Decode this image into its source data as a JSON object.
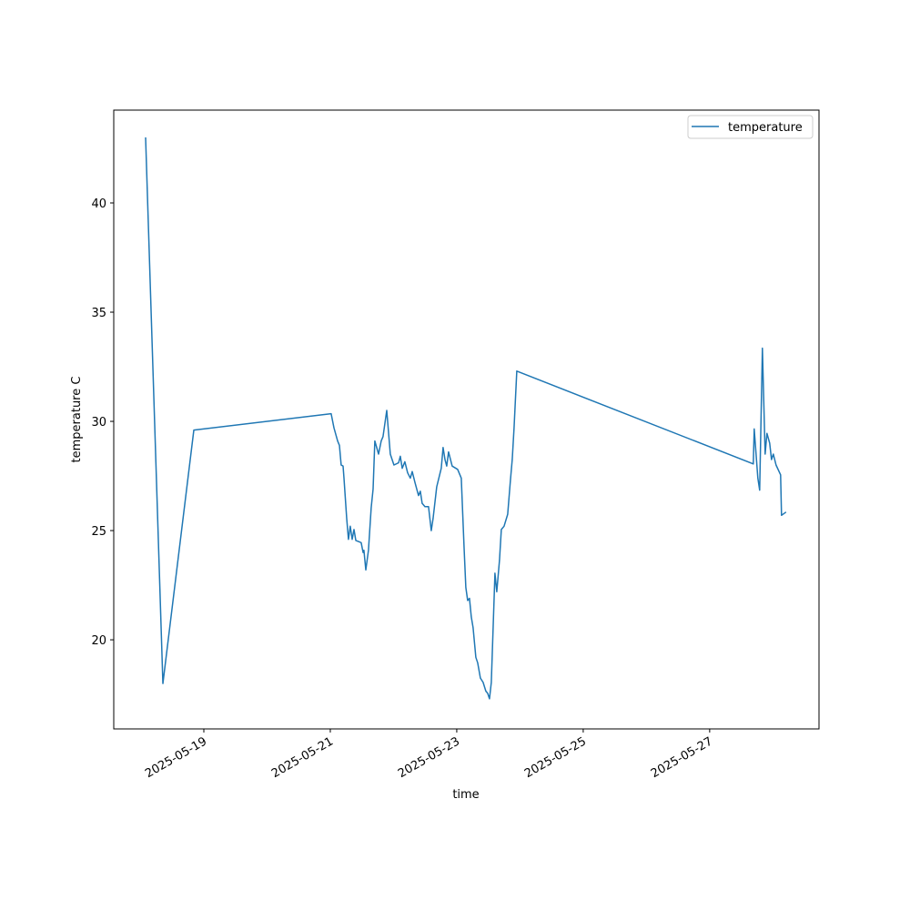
{
  "chart_data": {
    "type": "line",
    "xlabel": "time",
    "ylabel": "temperature C",
    "x": [
      "2025-05-18 01:54",
      "2025-05-18 08:28",
      "2025-05-18 20:12",
      "2025-05-21 00:20",
      "2025-05-21 01:23",
      "2025-05-21 02:46",
      "2025-05-21 03:27",
      "2025-05-21 04:08",
      "2025-05-21 04:50",
      "2025-05-21 05:11",
      "2025-05-21 06:13",
      "2025-05-21 06:54",
      "2025-05-21 07:35",
      "2025-05-21 08:17",
      "2025-05-21 08:59",
      "2025-05-21 09:40",
      "2025-05-21 10:42",
      "2025-05-21 11:44",
      "2025-05-21 12:26",
      "2025-05-21 12:46",
      "2025-05-21 13:28",
      "2025-05-21 14:30",
      "2025-05-21 15:32",
      "2025-05-21 16:14",
      "2025-05-21 16:55",
      "2025-05-21 18:18",
      "2025-05-21 19:20",
      "2025-05-21 20:01",
      "2025-05-21 21:25",
      "2025-05-21 22:47",
      "2025-05-22 00:10",
      "2025-05-22 01:54",
      "2025-05-22 02:35",
      "2025-05-22 03:17",
      "2025-05-22 04:19",
      "2025-05-22 05:21",
      "2025-05-22 06:23",
      "2025-05-22 07:05",
      "2025-05-22 08:07",
      "2025-05-22 09:29",
      "2025-05-22 10:11",
      "2025-05-22 10:52",
      "2025-05-22 11:55",
      "2025-05-22 13:17",
      "2025-05-22 14:20",
      "2025-05-22 15:01",
      "2025-05-22 16:24",
      "2025-05-22 18:08",
      "2025-05-22 18:49",
      "2025-05-22 19:31",
      "2025-05-22 20:12",
      "2025-05-22 20:53",
      "2025-05-22 22:16",
      "2025-05-23 00:20",
      "2025-05-23 01:43",
      "2025-05-23 02:46",
      "2025-05-23 03:27",
      "2025-05-23 04:08",
      "2025-05-23 04:50",
      "2025-05-23 05:31",
      "2025-05-23 06:13",
      "2025-05-23 07:15",
      "2025-05-23 07:56",
      "2025-05-23 08:58",
      "2025-05-23 10:01",
      "2025-05-23 11:03",
      "2025-05-23 11:44",
      "2025-05-23 12:26",
      "2025-05-23 13:07",
      "2025-05-23 14:30",
      "2025-05-23 15:11",
      "2025-05-23 16:14",
      "2025-05-23 16:55",
      "2025-05-23 17:57",
      "2025-05-23 19:20",
      "2025-05-23 20:22",
      "2025-05-23 21:04",
      "2025-05-23 21:45",
      "2025-05-23 22:47",
      "2025-05-27 16:34",
      "2025-05-27 16:55",
      "2025-05-27 18:17",
      "2025-05-27 18:59",
      "2025-05-27 20:01",
      "2025-05-27 21:03",
      "2025-05-27 21:44",
      "2025-05-27 22:47",
      "2025-05-27 23:28",
      "2025-05-28 00:10",
      "2025-05-28 01:12",
      "2025-05-28 02:56",
      "2025-05-28 03:16",
      "2025-05-28 05:00"
    ],
    "series": [
      {
        "name": "temperature",
        "color": "#1f77b4",
        "values": [
          43.0,
          18.0,
          29.6,
          30.35,
          29.7,
          29.1,
          28.9,
          28.0,
          27.95,
          27.4,
          25.55,
          24.6,
          25.2,
          24.6,
          25.05,
          24.55,
          24.5,
          24.45,
          24.0,
          24.1,
          23.2,
          24.1,
          26.05,
          26.9,
          29.1,
          28.5,
          29.1,
          29.3,
          30.5,
          28.5,
          28.0,
          28.1,
          28.4,
          27.85,
          28.15,
          27.65,
          27.4,
          27.7,
          27.2,
          26.6,
          26.8,
          26.25,
          26.1,
          26.1,
          25.0,
          25.55,
          27.0,
          27.85,
          28.8,
          28.25,
          27.95,
          28.6,
          27.95,
          27.8,
          27.4,
          24.3,
          22.4,
          21.8,
          21.9,
          21.05,
          20.55,
          19.2,
          18.95,
          18.25,
          18.05,
          17.65,
          17.55,
          17.3,
          18.05,
          23.05,
          22.2,
          23.65,
          25.05,
          25.2,
          25.75,
          27.3,
          28.25,
          29.7,
          32.3,
          28.05,
          29.65,
          27.4,
          26.85,
          33.35,
          28.5,
          29.45,
          29.0,
          28.25,
          28.5,
          28.0,
          27.55,
          25.7,
          25.85
        ]
      }
    ],
    "xlim": [
      "2025-05-17 13:48",
      "2025-05-28 17:30"
    ],
    "xticks": [
      {
        "value": "2025-05-19 00:00",
        "label": "2025-05-19"
      },
      {
        "value": "2025-05-21 00:00",
        "label": "2025-05-21"
      },
      {
        "value": "2025-05-23 00:00",
        "label": "2025-05-23"
      },
      {
        "value": "2025-05-25 00:00",
        "label": "2025-05-25"
      },
      {
        "value": "2025-05-27 00:00",
        "label": "2025-05-27"
      }
    ],
    "ylim": [
      15.92,
      44.25
    ],
    "yticks": [
      20,
      25,
      30,
      35,
      40
    ],
    "legend": "upper right"
  }
}
